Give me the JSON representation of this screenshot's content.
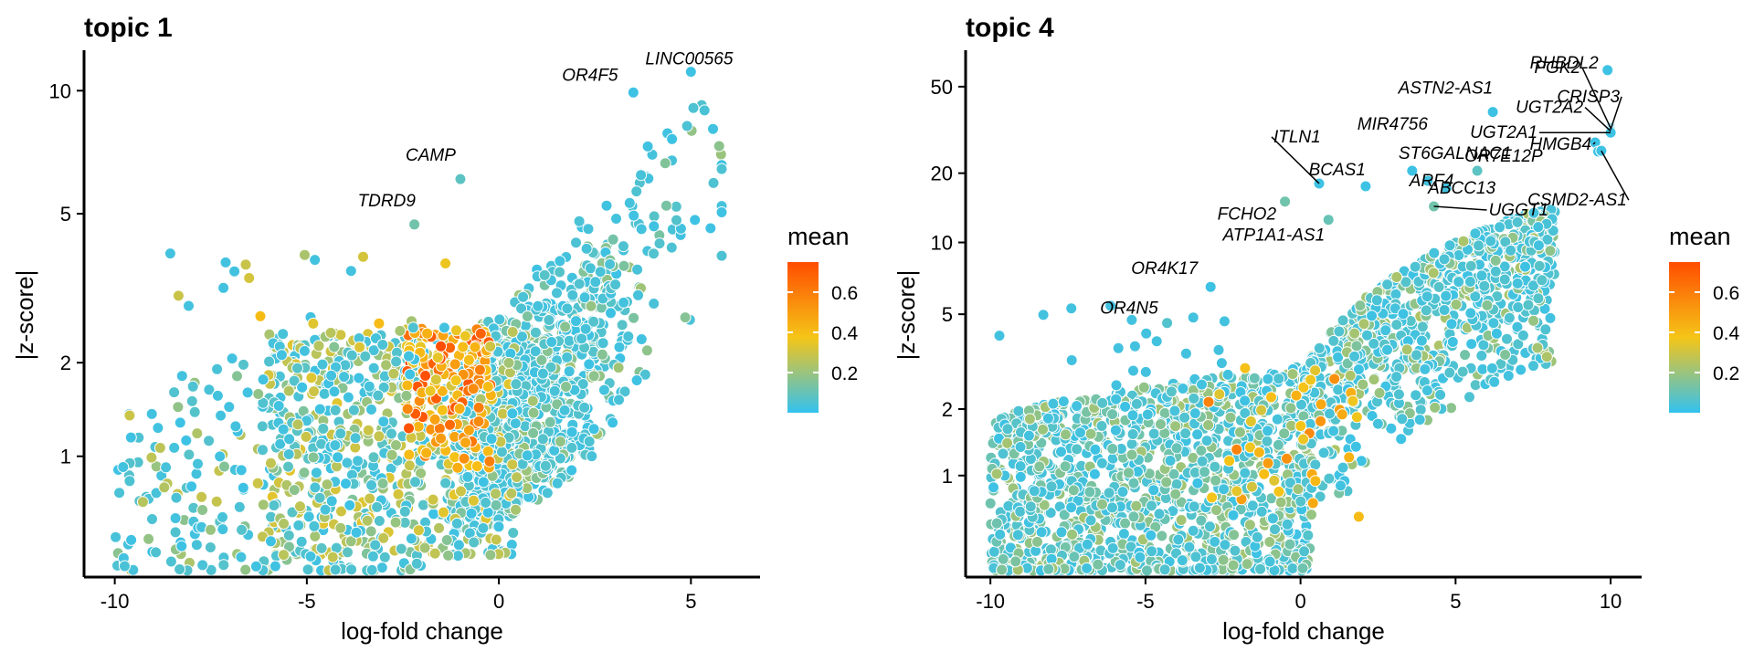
{
  "color_scale": {
    "stops": [
      "#33c2f0",
      "#f5c518",
      "#ff4d00"
    ],
    "min": 0,
    "max": 0.75
  },
  "chart_data": [
    {
      "type": "scatter",
      "title": "topic 1",
      "xlabel": "log-fold change",
      "ylabel": "|z-score|",
      "xlim": [
        -10.8,
        6.8
      ],
      "ylim": [
        0.25,
        12.5
      ],
      "x_ticks": [
        -10,
        -5,
        0,
        5
      ],
      "x_tick_labels": [
        "-10",
        "-5",
        "0",
        "5"
      ],
      "y_ticks": [
        1,
        2,
        5,
        10
      ],
      "y_tick_labels": [
        "1",
        "2",
        "5",
        "10"
      ],
      "y_scale": "transformed",
      "legend": {
        "title": "mean",
        "ticks": [
          0.2,
          0.4,
          0.6
        ],
        "tick_labels": [
          "0.2",
          "0.4",
          "0.6"
        ],
        "position": "right"
      },
      "highlighted_genes": [
        {
          "label": "LINC00565",
          "x": 5.0,
          "y": 11.1,
          "mean": 0.02
        },
        {
          "label": "OR4F5",
          "x": 3.5,
          "y": 9.9,
          "mean": 0.02
        },
        {
          "label": "CAMP",
          "x": -1.0,
          "y": 6.1,
          "mean": 0.08
        },
        {
          "label": "TDRD9",
          "x": -2.2,
          "y": 4.7,
          "mean": 0.12
        }
      ]
    },
    {
      "type": "scatter",
      "title": "topic 4",
      "xlabel": "log-fold change",
      "ylabel": "|z-score|",
      "xlim": [
        -10.8,
        11.0
      ],
      "ylim": [
        0.25,
        75
      ],
      "x_ticks": [
        -10,
        -5,
        0,
        5,
        10
      ],
      "x_tick_labels": [
        "-10",
        "-5",
        "0",
        "5",
        "10"
      ],
      "y_ticks": [
        1,
        2,
        5,
        10,
        20,
        50
      ],
      "y_tick_labels": [
        "1",
        "2",
        "5",
        "10",
        "20",
        "50"
      ],
      "y_scale": "transformed",
      "legend": {
        "title": "mean",
        "ticks": [
          0.2,
          0.4,
          0.6
        ],
        "tick_labels": [
          "0.2",
          "0.4",
          "0.6"
        ],
        "position": "right"
      },
      "highlighted_genes": [
        {
          "label": "RHBDL2",
          "x": 9.9,
          "y": 60,
          "mean": 0.02
        },
        {
          "label": "ASTN2-AS1",
          "x": 6.2,
          "y": 38,
          "mean": 0.02
        },
        {
          "label": "PGK2",
          "x": 10.0,
          "y": 32,
          "mean": 0.02
        },
        {
          "label": "CRISP3",
          "x": 10.0,
          "y": 31.5,
          "mean": 0.02
        },
        {
          "label": "UGT2A2",
          "x": 10.0,
          "y": 31,
          "mean": 0.02
        },
        {
          "label": "UGT2A1",
          "x": 10.0,
          "y": 30.5,
          "mean": 0.02
        },
        {
          "label": "HMGB4",
          "x": 9.5,
          "y": 27.5,
          "mean": 0.02
        },
        {
          "label": "ST6GALNAC1",
          "x": 9.6,
          "y": 25,
          "mean": 0.02
        },
        {
          "label": "CSMD2-AS1",
          "x": 9.7,
          "y": 25.2,
          "mean": 0.02
        },
        {
          "label": "ITLN1",
          "x": 0.6,
          "y": 18,
          "mean": 0.02
        },
        {
          "label": "BCAS1",
          "x": 2.1,
          "y": 17.5,
          "mean": 0.02
        },
        {
          "label": "MIR4756",
          "x": 3.6,
          "y": 20.5,
          "mean": 0.02
        },
        {
          "label": "OR7E12P",
          "x": 5.7,
          "y": 20.5,
          "mean": 0.08
        },
        {
          "label": "ARF4",
          "x": 4.1,
          "y": 18.5,
          "mean": 0.03
        },
        {
          "label": "ABCC13",
          "x": 4.7,
          "y": 17.2,
          "mean": 0.03
        },
        {
          "label": "UGGT1",
          "x": 4.3,
          "y": 14.3,
          "mean": 0.12
        },
        {
          "label": "FCHO2",
          "x": -0.5,
          "y": 15,
          "mean": 0.12
        },
        {
          "label": "ATP1A1-AS1",
          "x": 0.9,
          "y": 12.5,
          "mean": 0.1
        },
        {
          "label": "OR4K17",
          "x": -2.9,
          "y": 6.5,
          "mean": 0.02
        },
        {
          "label": "OR4N5",
          "x": -4.3,
          "y": 4.6,
          "mean": 0.06
        }
      ]
    }
  ]
}
